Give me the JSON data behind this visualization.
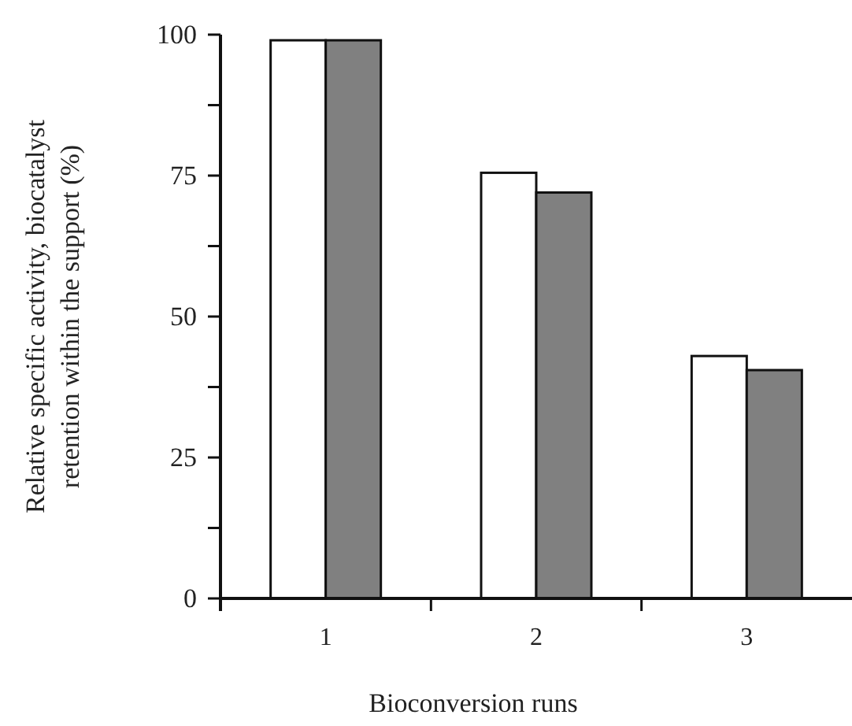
{
  "chart_data": {
    "type": "bar",
    "xlabel": "Bioconversion runs",
    "ylabel": "Relative specific activity,  biocatalyst retention within the support (%)",
    "categories": [
      "1",
      "2",
      "3"
    ],
    "series": [
      {
        "color": "#ffffff",
        "values": [
          99,
          75.5,
          43
        ]
      },
      {
        "color": "#808080",
        "values": [
          99,
          72,
          40.5
        ]
      }
    ],
    "ylim": [
      0,
      100
    ],
    "yticks": [
      0,
      {
        "value": 12.5,
        "label": null
      },
      25,
      {
        "value": 37.5,
        "label": null
      },
      50,
      {
        "value": 62.5,
        "label": null
      },
      75,
      {
        "value": 87.5,
        "label": null
      },
      100
    ],
    "grid": false
  }
}
